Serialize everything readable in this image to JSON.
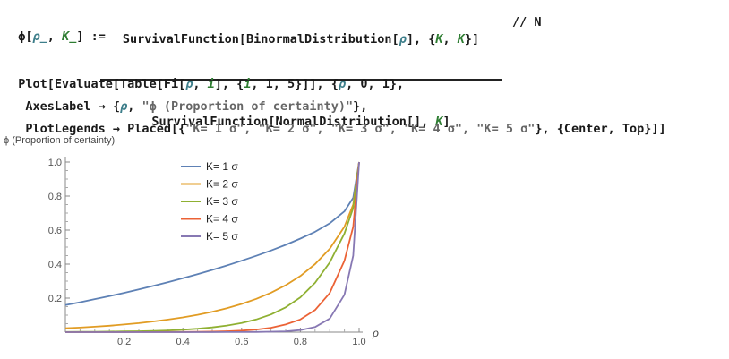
{
  "code": {
    "def_lhs_head": "ϕ[",
    "def_lhs_var1": "ρ_",
    "def_lhs_sep": ", ",
    "def_lhs_var2": "K_",
    "def_lhs_tail": "] :=",
    "numerator_a": "SurvivalFunction[BinormalDistribution[",
    "numerator_var": "ρ",
    "numerator_b": "], {",
    "numerator_k1": "K",
    "numerator_c": ", ",
    "numerator_k2": "K",
    "numerator_d": "}]",
    "denominator_a": "SurvivalFunction[NormalDistribution[], ",
    "denominator_k": "K",
    "denominator_b": "]",
    "postfix": "// N",
    "plot_line1_a": "Plot[Evaluate[Table[Fi[",
    "plot_line1_rho": "ρ",
    "plot_line1_b": ", ",
    "plot_line1_i": "i",
    "plot_line1_c": "], {",
    "plot_line1_i2": "i",
    "plot_line1_d": ", 1, 5}]], {",
    "plot_line1_rho2": "ρ",
    "plot_line1_e": ", 0, 1},",
    "plot_line2_a": " AxesLabel → {",
    "plot_line2_rho": "ρ",
    "plot_line2_b": ", ",
    "plot_line2_str": "\"ϕ (Proportion of certainty)\"",
    "plot_line2_c": "},",
    "plot_line3_a": " PlotLegends → Placed[{",
    "plot_line3_str": "\"K= 1 σ\", \"K= 2 σ\", \"K= 3 σ\", \"K= 4 σ\", \"K= 5 σ\"",
    "plot_line3_b": "}, {Center, Top}]]"
  },
  "chart_data": {
    "type": "line",
    "ylabel": "ϕ (Proportion of certainty)",
    "xlabel": "ρ",
    "xlim": [
      0,
      1
    ],
    "ylim": [
      0,
      1
    ],
    "x_ticks": [
      "0.2",
      "0.4",
      "0.6",
      "0.8",
      "1.0"
    ],
    "y_ticks": [
      "0.2",
      "0.4",
      "0.6",
      "0.8",
      "1.0"
    ],
    "legend_placement": "center-top",
    "x": [
      0,
      0.05,
      0.1,
      0.15,
      0.2,
      0.25,
      0.3,
      0.35,
      0.4,
      0.45,
      0.5,
      0.55,
      0.6,
      0.65,
      0.7,
      0.75,
      0.8,
      0.85,
      0.9,
      0.95,
      0.98,
      1.0
    ],
    "series": [
      {
        "name": "K= 1 σ",
        "color": "#5E81B5",
        "values": [
          0.159,
          0.176,
          0.194,
          0.212,
          0.231,
          0.251,
          0.272,
          0.294,
          0.317,
          0.341,
          0.366,
          0.392,
          0.42,
          0.449,
          0.48,
          0.513,
          0.55,
          0.59,
          0.64,
          0.71,
          0.79,
          1.0
        ]
      },
      {
        "name": "K= 2 σ",
        "color": "#E19C24",
        "values": [
          0.023,
          0.027,
          0.032,
          0.038,
          0.045,
          0.053,
          0.063,
          0.074,
          0.087,
          0.102,
          0.12,
          0.141,
          0.166,
          0.196,
          0.232,
          0.276,
          0.33,
          0.4,
          0.49,
          0.62,
          0.75,
          1.0
        ]
      },
      {
        "name": "K= 3 σ",
        "color": "#8FB032",
        "values": [
          0.0013,
          0.0017,
          0.0022,
          0.003,
          0.004,
          0.0055,
          0.0075,
          0.01,
          0.014,
          0.02,
          0.028,
          0.039,
          0.054,
          0.075,
          0.104,
          0.146,
          0.205,
          0.29,
          0.41,
          0.58,
          0.73,
          1.0
        ]
      },
      {
        "name": "K= 4 σ",
        "color": "#EB6235",
        "values": [
          3e-05,
          5e-05,
          8e-05,
          0.00013,
          0.0002,
          0.0003,
          0.0005,
          0.0008,
          0.0013,
          0.002,
          0.0033,
          0.0055,
          0.009,
          0.015,
          0.026,
          0.045,
          0.075,
          0.13,
          0.23,
          0.42,
          0.62,
          1.0
        ]
      },
      {
        "name": "K= 5 σ",
        "color": "#8778B3",
        "values": [
          0.0,
          0.0,
          0.0,
          0.0,
          0.0,
          0.0,
          1e-05,
          2e-05,
          4e-05,
          8e-05,
          0.00015,
          0.0003,
          0.0006,
          0.0012,
          0.0025,
          0.005,
          0.012,
          0.03,
          0.08,
          0.22,
          0.45,
          1.0
        ]
      }
    ]
  }
}
